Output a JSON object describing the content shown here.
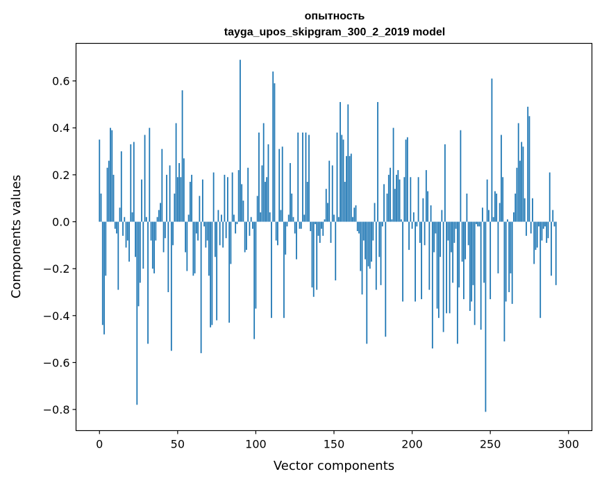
{
  "chart_data": {
    "type": "bar",
    "title_line1": "опытность",
    "title_line2": "tayga_upos_skipgram_300_2_2019 model",
    "xlabel": "Vector components",
    "ylabel": "Components values",
    "xlim": [
      -15,
      315
    ],
    "ylim": [
      -0.89,
      0.76
    ],
    "xticks": [
      0,
      50,
      100,
      150,
      200,
      250,
      300
    ],
    "yticks": [
      -0.8,
      -0.6,
      -0.4,
      -0.2,
      0.0,
      0.2,
      0.4,
      0.6
    ],
    "xtick_labels": [
      "0",
      "50",
      "100",
      "150",
      "200",
      "250",
      "300"
    ],
    "ytick_labels": [
      "−0.8",
      "−0.6",
      "−0.4",
      "−0.2",
      "0.0",
      "0.2",
      "0.4",
      "0.6"
    ],
    "bar_color": "#1f77b4",
    "values": [
      0.35,
      0.12,
      -0.44,
      -0.48,
      -0.23,
      0.23,
      0.26,
      0.4,
      0.39,
      0.2,
      -0.03,
      -0.05,
      -0.29,
      0.06,
      0.3,
      -0.06,
      0.02,
      -0.11,
      -0.08,
      -0.17,
      0.33,
      0.04,
      0.34,
      -0.15,
      -0.78,
      -0.36,
      -0.26,
      0.18,
      -0.2,
      0.37,
      0.02,
      -0.52,
      0.4,
      -0.08,
      -0.2,
      -0.22,
      -0.08,
      0.02,
      0.05,
      0.08,
      0.31,
      -0.13,
      -0.07,
      0.2,
      -0.3,
      0.24,
      -0.55,
      -0.1,
      0.12,
      0.42,
      0.19,
      0.25,
      0.19,
      0.56,
      0.27,
      -0.13,
      -0.21,
      0.03,
      0.17,
      0.2,
      -0.23,
      -0.22,
      -0.05,
      -0.08,
      0.11,
      -0.56,
      0.18,
      -0.02,
      -0.11,
      -0.08,
      -0.23,
      -0.45,
      -0.44,
      0.21,
      -0.15,
      -0.42,
      0.05,
      -0.1,
      0.03,
      -0.11,
      0.2,
      -0.07,
      0.19,
      -0.43,
      -0.18,
      0.21,
      0.03,
      -0.05,
      -0.01,
      0.22,
      0.69,
      0.16,
      0.09,
      -0.13,
      -0.12,
      0.23,
      -0.06,
      0.02,
      -0.03,
      -0.5,
      -0.37,
      0.11,
      0.38,
      0.04,
      0.24,
      0.42,
      0.17,
      0.19,
      0.33,
      0.04,
      -0.41,
      0.64,
      0.59,
      -0.08,
      -0.1,
      0.31,
      0.05,
      0.32,
      -0.41,
      -0.14,
      -0.02,
      0.03,
      0.25,
      0.12,
      0.02,
      -0.05,
      -0.16,
      0.38,
      -0.03,
      -0.03,
      0.38,
      0.03,
      0.38,
      0.17,
      0.37,
      -0.04,
      -0.28,
      -0.32,
      -0.01,
      -0.29,
      -0.06,
      -0.09,
      -0.03,
      -0.06,
      0.01,
      0.14,
      0.08,
      0.26,
      -0.09,
      0.24,
      0.03,
      -0.25,
      0.38,
      0.02,
      0.51,
      0.37,
      0.35,
      0.17,
      0.28,
      0.5,
      0.28,
      0.29,
      0.02,
      0.06,
      0.07,
      -0.04,
      -0.05,
      -0.21,
      -0.31,
      -0.08,
      -0.16,
      -0.52,
      -0.19,
      -0.2,
      -0.17,
      -0.08,
      0.08,
      -0.29,
      0.51,
      -0.15,
      -0.27,
      -0.02,
      0.16,
      -0.49,
      0.12,
      0.2,
      0.23,
      0.01,
      0.4,
      0.14,
      0.2,
      0.22,
      0.18,
      0.01,
      -0.34,
      0.19,
      0.35,
      0.36,
      -0.12,
      0.19,
      -0.03,
      0.04,
      -0.34,
      -0.02,
      0.19,
      -0.09,
      -0.33,
      0.1,
      -0.1,
      0.22,
      0.13,
      -0.29,
      0.07,
      -0.54,
      -0.13,
      -0.05,
      -0.37,
      -0.41,
      -0.15,
      0.05,
      -0.47,
      0.33,
      -0.39,
      -0.08,
      -0.39,
      -0.13,
      -0.26,
      -0.09,
      -0.03,
      -0.52,
      -0.28,
      0.39,
      -0.17,
      -0.33,
      -0.16,
      0.12,
      -0.1,
      -0.38,
      -0.34,
      -0.27,
      -0.44,
      -0.01,
      -0.02,
      -0.02,
      -0.46,
      0.06,
      -0.26,
      -0.81,
      0.18,
      0.05,
      -0.33,
      0.61,
      0.02,
      0.13,
      0.12,
      -0.22,
      0.08,
      0.37,
      0.19,
      -0.51,
      -0.34,
      0.01,
      -0.3,
      -0.22,
      -0.35,
      0.04,
      0.12,
      0.23,
      0.42,
      0.26,
      0.34,
      0.32,
      0.1,
      -0.06,
      0.49,
      0.45,
      -0.05,
      0.1,
      -0.18,
      -0.12,
      -0.11,
      -0.02,
      -0.41,
      -0.08,
      -0.03,
      -0.02,
      -0.09,
      -0.07,
      0.21,
      -0.23,
      0.05,
      -0.02,
      -0.27
    ]
  }
}
